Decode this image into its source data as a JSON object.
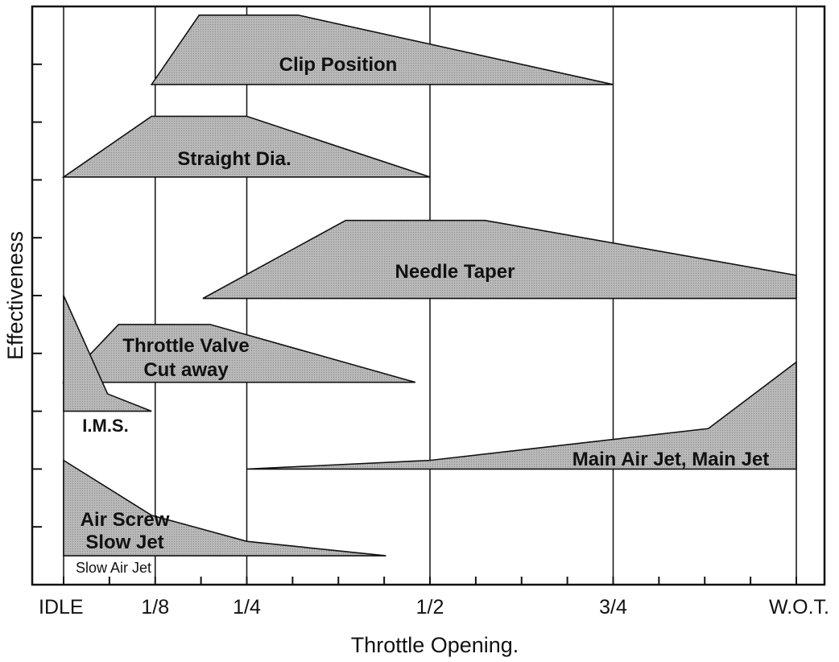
{
  "colors": {
    "fill": "#b3b3b3",
    "line": "#111111",
    "background": "#ffffff"
  },
  "chart_data": {
    "type": "area",
    "title": "",
    "xlabel": "Throttle Opening.",
    "ylabel": "Effectiveness",
    "x_ticks": [
      "IDLE",
      "1/8",
      "1/4",
      "1/2",
      "3/4",
      "W.O.T."
    ],
    "x_tick_values": [
      0,
      0.125,
      0.25,
      0.5,
      0.75,
      1
    ],
    "xlim": [
      0,
      1
    ],
    "grid": "vertical lines at 1/8, 1/4, 1/2, 3/4, W.O.T.",
    "note": "Slow Air Jet",
    "series": [
      {
        "name": "Clip Position",
        "label_lines": [
          "Clip Position"
        ],
        "x": [
          0.12,
          0.185,
          0.32,
          0.75
        ],
        "y_bottom": 0.865,
        "y_top": [
          0.865,
          0.985,
          0.985,
          0.865
        ]
      },
      {
        "name": "Straight Dia.",
        "label_lines": [
          "Straight Dia."
        ],
        "x": [
          0,
          0.12,
          0.25,
          0.5
        ],
        "y_bottom": 0.705,
        "y_top": [
          0.705,
          0.81,
          0.81,
          0.705
        ]
      },
      {
        "name": "Needle Taper",
        "label_lines": [
          "Needle Taper"
        ],
        "x": [
          0.19,
          0.385,
          0.575,
          1.0
        ],
        "y_bottom": 0.495,
        "y_top": [
          0.495,
          0.63,
          0.63,
          0.535
        ]
      },
      {
        "name": "Throttle Valve Cut away",
        "label_lines": [
          "Throttle Valve",
          "Cut away"
        ],
        "x": [
          0,
          0.075,
          0.2,
          0.48
        ],
        "y_bottom": 0.35,
        "y_top": [
          0.35,
          0.45,
          0.45,
          0.35
        ]
      },
      {
        "name": "I.M.S.",
        "label_lines": [
          "I.M.S."
        ],
        "x": [
          0,
          0.06,
          0.12
        ],
        "y_bottom": 0.3,
        "y_top": [
          0.5,
          0.33,
          0.3
        ]
      },
      {
        "name": "Main Air Jet, Main Jet",
        "label_lines": [
          "Main Air Jet, Main Jet"
        ],
        "x": [
          0.25,
          0.5,
          0.88,
          1.0
        ],
        "y_bottom": 0.2,
        "y_top": [
          0.2,
          0.215,
          0.27,
          0.385
        ]
      },
      {
        "name": "Air Screw Slow Jet",
        "label_lines": [
          "Air Screw",
          "Slow Jet"
        ],
        "x": [
          0,
          0.12,
          0.25,
          0.44
        ],
        "y_bottom": 0.05,
        "y_top": [
          0.215,
          0.12,
          0.075,
          0.05
        ]
      }
    ]
  }
}
